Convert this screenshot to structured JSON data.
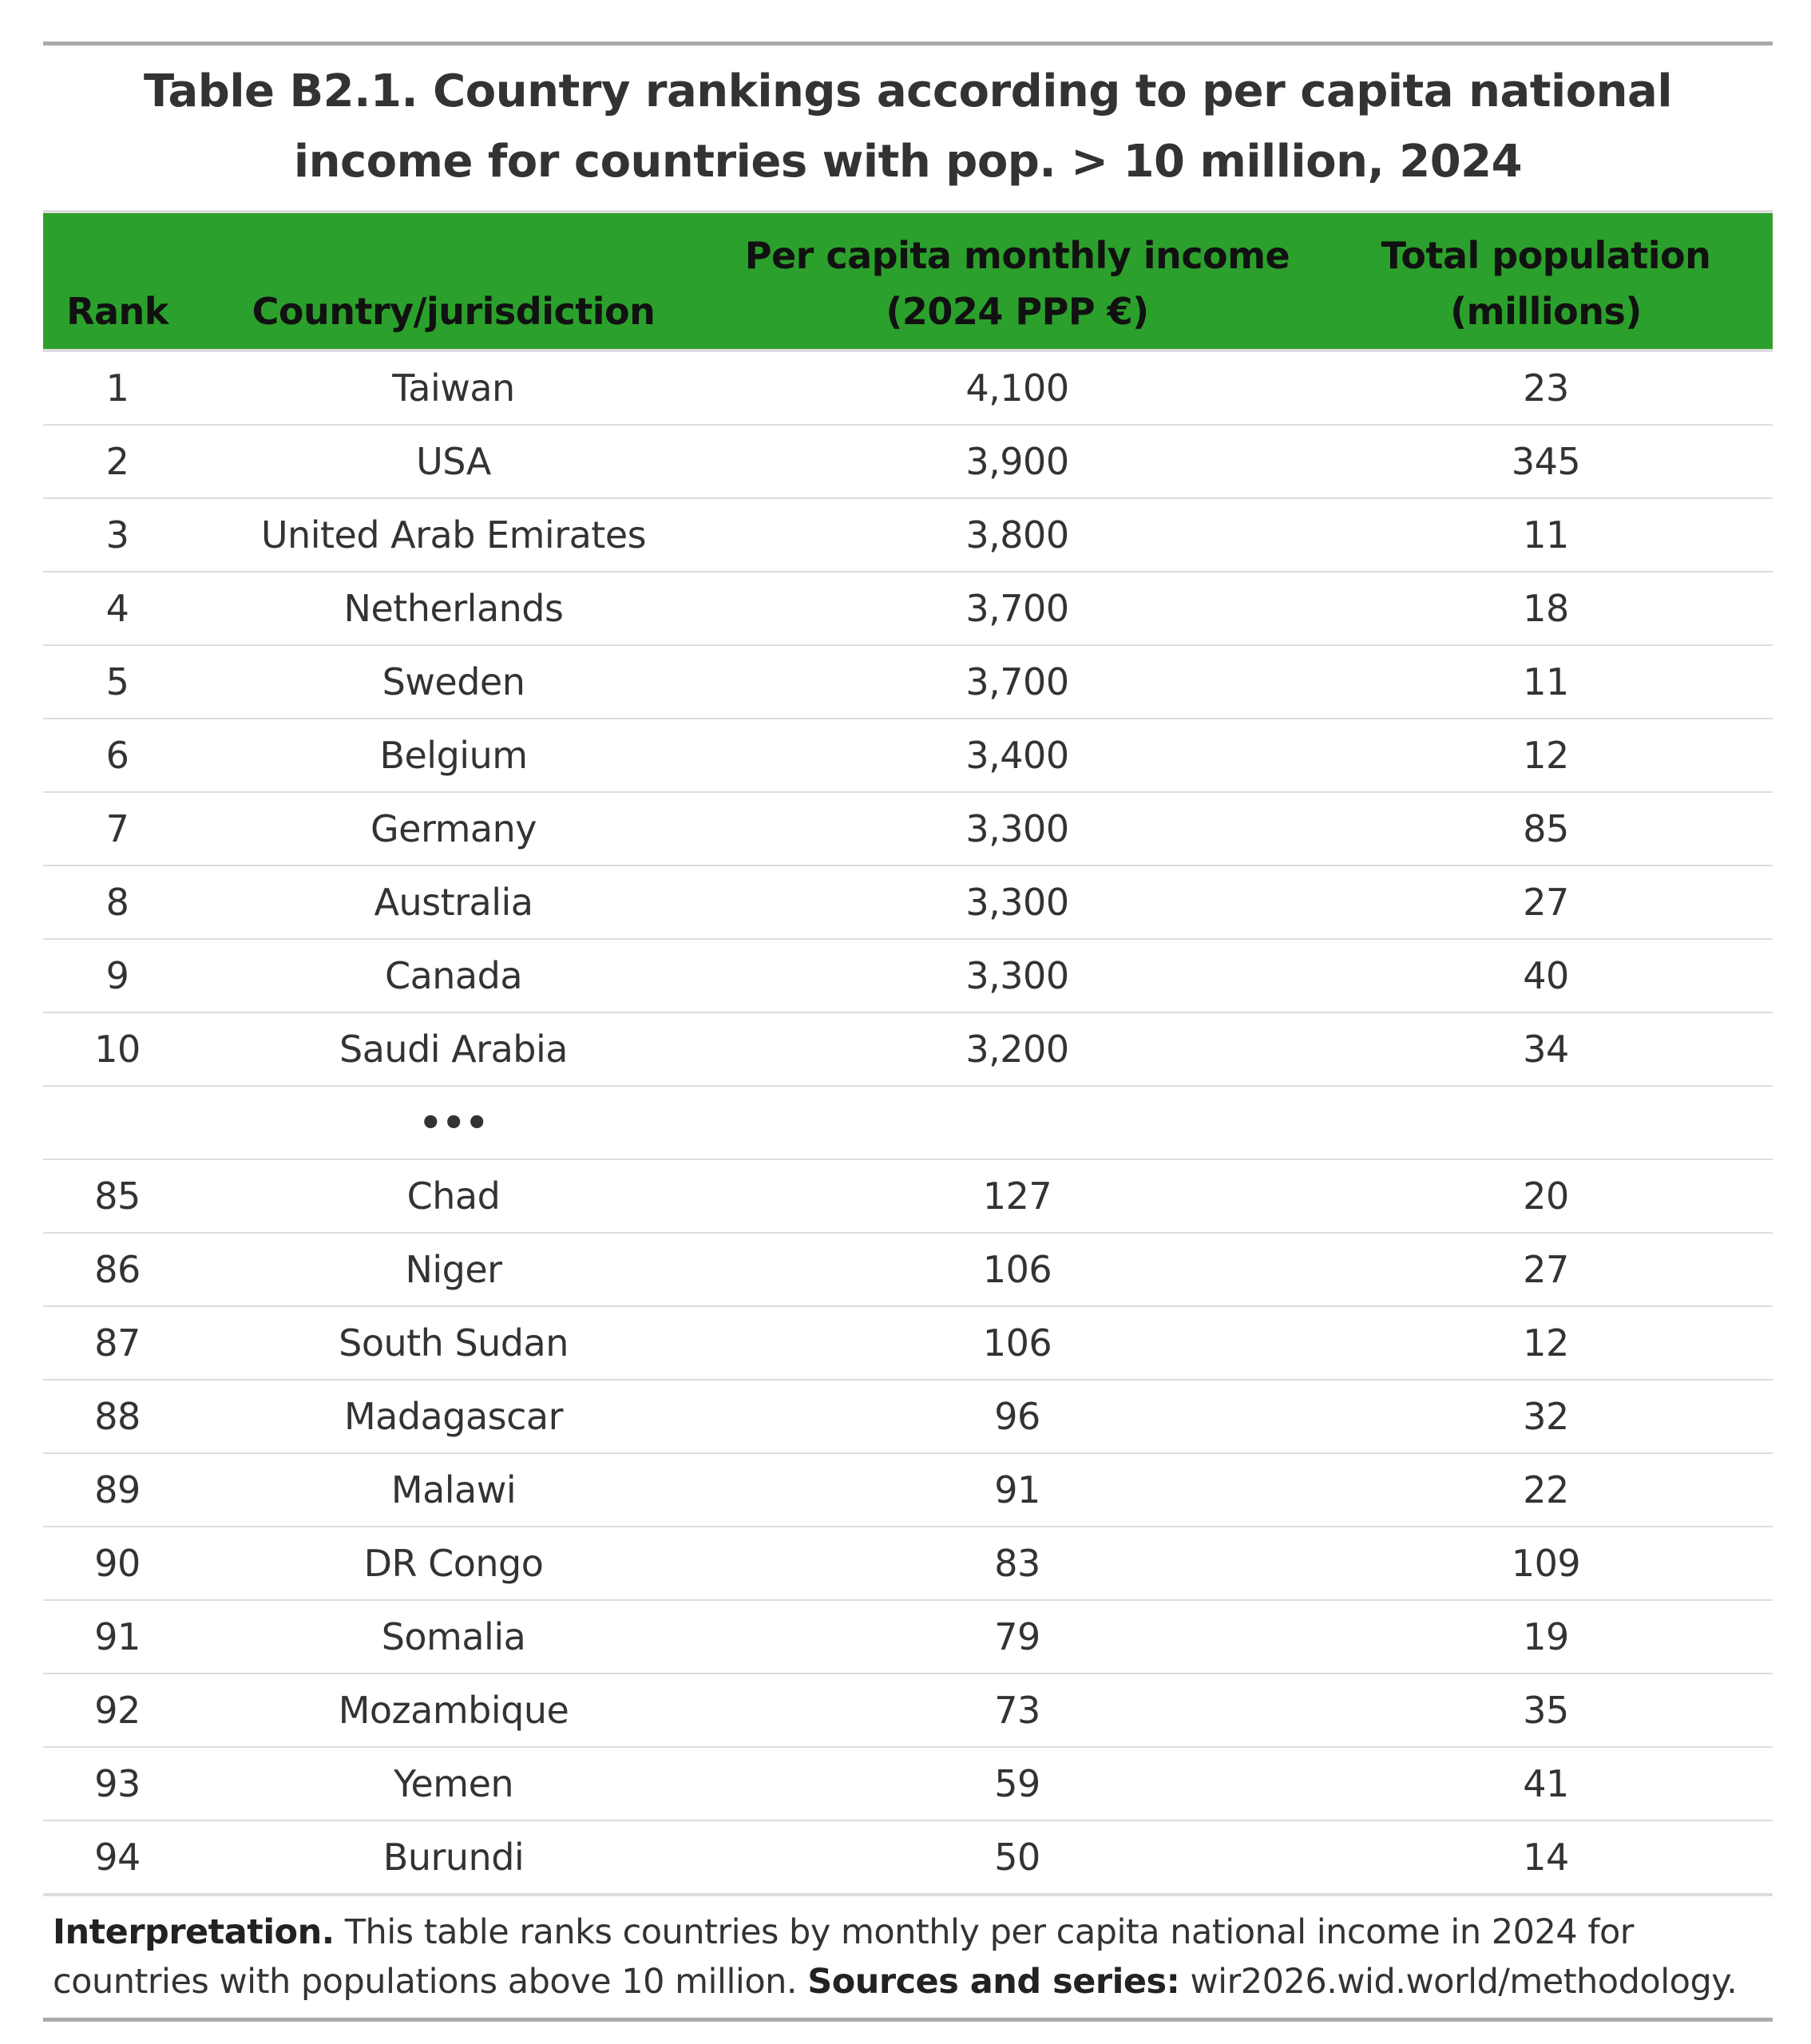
{
  "title": "Table B2.1. Country rankings according to per capita national income for countries with pop. > 10 million, 2024",
  "title_line1": "Table B2.1. Country rankings according to per capita national",
  "title_line2": "income for countries with pop. > 10 million, 2024",
  "columns": {
    "rank": "Rank",
    "country": "Country/jurisdiction",
    "income_line1": "Per capita monthly income",
    "income_line2": "(2024 PPP €)",
    "population_line1": "Total population",
    "population_line2": "(millions)"
  },
  "header_color": "#2ca02c",
  "top_rows": [
    {
      "rank": "1",
      "country": "Taiwan",
      "income": "4,100",
      "population": "23"
    },
    {
      "rank": "2",
      "country": "USA",
      "income": "3,900",
      "population": "345"
    },
    {
      "rank": "3",
      "country": "United Arab Emirates",
      "income": "3,800",
      "population": "11"
    },
    {
      "rank": "4",
      "country": "Netherlands",
      "income": "3,700",
      "population": "18"
    },
    {
      "rank": "5",
      "country": "Sweden",
      "income": "3,700",
      "population": "11"
    },
    {
      "rank": "6",
      "country": "Belgium",
      "income": "3,400",
      "population": "12"
    },
    {
      "rank": "7",
      "country": "Germany",
      "income": "3,300",
      "population": "85"
    },
    {
      "rank": "8",
      "country": "Australia",
      "income": "3,300",
      "population": "27"
    },
    {
      "rank": "9",
      "country": "Canada",
      "income": "3,300",
      "population": "40"
    },
    {
      "rank": "10",
      "country": "Saudi Arabia",
      "income": "3,200",
      "population": "34"
    }
  ],
  "ellipsis": "•••",
  "bottom_rows": [
    {
      "rank": "85",
      "country": "Chad",
      "income": "127",
      "population": "20"
    },
    {
      "rank": "86",
      "country": "Niger",
      "income": "106",
      "population": "27"
    },
    {
      "rank": "87",
      "country": "South Sudan",
      "income": "106",
      "population": "12"
    },
    {
      "rank": "88",
      "country": "Madagascar",
      "income": "96",
      "population": "32"
    },
    {
      "rank": "89",
      "country": "Malawi",
      "income": "91",
      "population": "22"
    },
    {
      "rank": "90",
      "country": "DR Congo",
      "income": "83",
      "population": "109"
    },
    {
      "rank": "91",
      "country": "Somalia",
      "income": "79",
      "population": "19"
    },
    {
      "rank": "92",
      "country": "Mozambique",
      "income": "73",
      "population": "35"
    },
    {
      "rank": "93",
      "country": "Yemen",
      "income": "59",
      "population": "41"
    },
    {
      "rank": "94",
      "country": "Burundi",
      "income": "50",
      "population": "14"
    }
  ],
  "note": {
    "interpretation_label": "Interpretation.",
    "interpretation_text": " This table ranks countries by monthly per capita national income in 2024 for countries with populations above 10 million. ",
    "sources_label": "Sources and series:",
    "sources_text": " wir2026.wid.world/methodology."
  }
}
